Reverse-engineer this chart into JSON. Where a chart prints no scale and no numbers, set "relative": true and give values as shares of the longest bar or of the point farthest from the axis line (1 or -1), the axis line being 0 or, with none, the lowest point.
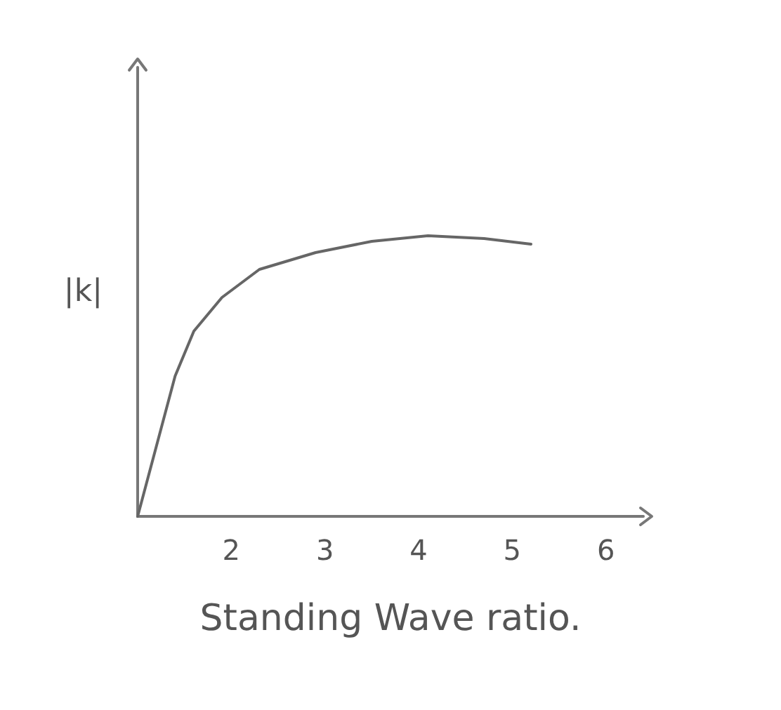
{
  "chart_data": {
    "type": "line",
    "xlabel": "Standing Wave ratio.",
    "ylabel": "|k|",
    "relative": true,
    "x": [
      1,
      1.2,
      1.4,
      1.6,
      1.9,
      2.3,
      2.9,
      3.5,
      4.1,
      4.7,
      5.2
    ],
    "series": [
      {
        "color": "#666666",
        "values": [
          0,
          0.25,
          0.5,
          0.66,
          0.78,
          0.88,
          0.94,
          0.98,
          1,
          0.99,
          0.97
        ]
      }
    ],
    "xlim": [
      1,
      6.4
    ],
    "xticks": [
      2,
      3,
      4,
      5,
      6
    ],
    "grid": false,
    "marker": "none",
    "line_style": "solid"
  }
}
